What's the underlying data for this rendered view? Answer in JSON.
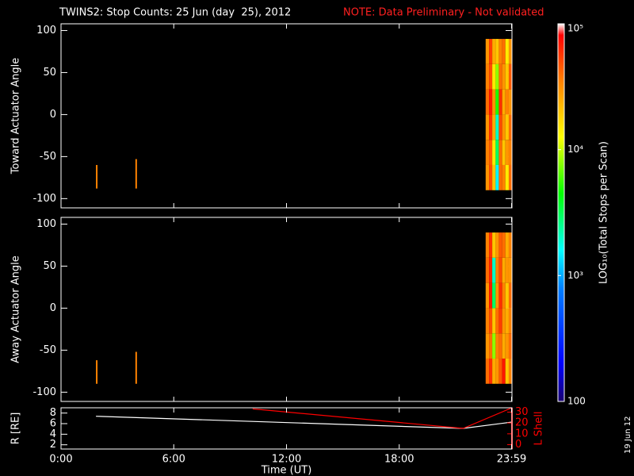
{
  "chart_data": [
    {
      "type": "heatmap",
      "title": "TWINS2: Stop Counts: 25 Jun (day  25), 2012",
      "note": "NOTE: Data Preliminary - Not validated",
      "ylabel": "Toward Actuator Angle",
      "xlim": [
        0,
        24
      ],
      "ylim": [
        -111,
        108
      ],
      "yticks": [
        -100,
        -50,
        0,
        50,
        100
      ],
      "x_edges": [
        22.6,
        22.78,
        22.95,
        23.13,
        23.3,
        23.48,
        23.65,
        23.83,
        24.0
      ],
      "y_edges": [
        -90,
        -60,
        -30,
        0,
        30,
        60,
        90
      ],
      "z": [
        [
          30000,
          50000,
          20000,
          1500,
          40000,
          35000,
          15000,
          40000
        ],
        [
          35000,
          45000,
          15000,
          3000,
          40000,
          20000,
          30000,
          35000
        ],
        [
          30000,
          60000,
          25000,
          2000,
          50000,
          30000,
          20000,
          40000
        ],
        [
          40000,
          70000,
          30000,
          5000,
          60000,
          25000,
          35000,
          30000
        ],
        [
          35000,
          50000,
          15000,
          8000,
          40000,
          30000,
          20000,
          45000
        ],
        [
          30000,
          55000,
          25000,
          20000,
          35000,
          40000,
          15000,
          30000
        ]
      ],
      "spikes": [
        {
          "x": 1.9,
          "y": [
            -88,
            -60
          ],
          "value": 35000
        },
        {
          "x": 4.0,
          "y": [
            -88,
            -53
          ],
          "value": 35000
        }
      ],
      "colorscale": {
        "log": true,
        "lim": [
          100,
          100000
        ],
        "label": "LOG₁₀(Total Stops per Scan)",
        "ticks": [
          100,
          {
            "value": 1000,
            "label": "10³"
          },
          {
            "value": 10000,
            "label": "10⁴"
          },
          {
            "value": 100000,
            "label": "10⁵"
          }
        ]
      }
    },
    {
      "type": "heatmap",
      "ylabel": "Away Actuator Angle",
      "xlim": [
        0,
        24
      ],
      "ylim": [
        -111,
        108
      ],
      "yticks": [
        -100,
        -50,
        0,
        50,
        100
      ],
      "x_edges": [
        22.6,
        22.78,
        22.95,
        23.13,
        23.3,
        23.48,
        23.65,
        23.83,
        24.0
      ],
      "y_edges": [
        -90,
        -60,
        -30,
        0,
        30,
        60,
        90
      ],
      "z": [
        [
          40000,
          60000,
          25000,
          30000,
          45000,
          70000,
          20000,
          35000
        ],
        [
          30000,
          40000,
          8000,
          35000,
          40000,
          25000,
          30000,
          40000
        ],
        [
          35000,
          50000,
          20000,
          40000,
          55000,
          30000,
          25000,
          35000
        ],
        [
          30000,
          70000,
          3000,
          30000,
          60000,
          35000,
          20000,
          40000
        ],
        [
          40000,
          65000,
          2000,
          35000,
          50000,
          25000,
          30000,
          30000
        ],
        [
          35000,
          60000,
          20000,
          30000,
          45000,
          40000,
          25000,
          35000
        ]
      ],
      "spikes": [
        {
          "x": 1.9,
          "y": [
            -90,
            -62
          ],
          "value": 35000
        },
        {
          "x": 4.0,
          "y": [
            -90,
            -52
          ],
          "value": 35000
        }
      ]
    },
    {
      "type": "line",
      "ylabel": "R [RE]",
      "y2label": "L Shell",
      "xlabel": "Time (UT)",
      "xlim": [
        0,
        24
      ],
      "ylim": [
        1.2,
        9
      ],
      "y2lim": [
        -4,
        34
      ],
      "xticks": [
        {
          "value": 0,
          "label": "0:00"
        },
        {
          "value": 6,
          "label": "6:00"
        },
        {
          "value": 12,
          "label": "12:00"
        },
        {
          "value": 18,
          "label": "18:00"
        },
        {
          "value": 23.98,
          "label": "23:59"
        }
      ],
      "yticks": [
        2,
        4,
        6,
        8
      ],
      "y2ticks": [
        0,
        10,
        20,
        30
      ],
      "series": [
        {
          "name": "R",
          "color": "#ffffff",
          "x": [
            1.86,
            21.4,
            24
          ],
          "values": [
            7.4,
            5.1,
            6.3
          ]
        },
        {
          "name": "L Shell",
          "color": "#ff0000",
          "axis": "y2",
          "x": [
            10.2,
            21.4,
            24
          ],
          "values": [
            33,
            15,
            34
          ]
        }
      ]
    }
  ],
  "date_stamp": "19 Jun 12"
}
